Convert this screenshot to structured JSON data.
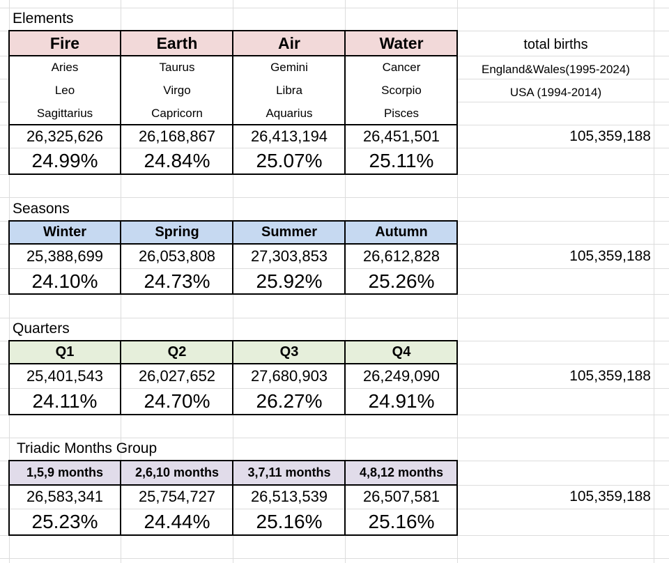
{
  "sheet": {
    "side_info": {
      "title": "total births",
      "line1": "England&Wales(1995-2024)",
      "line2": "USA (1994-2014)"
    },
    "colors": {
      "elements_header": "#f2d9d9",
      "seasons_header": "#c6d9f1",
      "quarters_header": "#e6efdb",
      "triadic_header": "#e1dcea",
      "gridline": "#dcdcdc"
    },
    "sections": [
      {
        "title": "Elements",
        "headers": [
          "Fire",
          "Earth",
          "Air",
          "Water"
        ],
        "signs": [
          [
            "Aries",
            "Leo",
            "Sagittarius"
          ],
          [
            "Taurus",
            "Virgo",
            "Capricorn"
          ],
          [
            "Gemini",
            "Libra",
            "Aquarius"
          ],
          [
            "Cancer",
            "Scorpio",
            "Pisces"
          ]
        ],
        "counts": [
          "26,325,626",
          "26,168,867",
          "26,413,194",
          "26,451,501"
        ],
        "percents": [
          "24.99%",
          "24.84%",
          "25.07%",
          "25.11%"
        ],
        "total": "105,359,188"
      },
      {
        "title": "Seasons",
        "headers": [
          "Winter",
          "Spring",
          "Summer",
          "Autumn"
        ],
        "counts": [
          "25,388,699",
          "26,053,808",
          "27,303,853",
          "26,612,828"
        ],
        "percents": [
          "24.10%",
          "24.73%",
          "25.92%",
          "25.26%"
        ],
        "total": "105,359,188"
      },
      {
        "title": "Quarters",
        "headers": [
          "Q1",
          "Q2",
          "Q3",
          "Q4"
        ],
        "counts": [
          "25,401,543",
          "26,027,652",
          "27,680,903",
          "26,249,090"
        ],
        "percents": [
          "24.11%",
          "24.70%",
          "26.27%",
          "24.91%"
        ],
        "total": "105,359,188"
      },
      {
        "title": "Triadic Months Group",
        "headers": [
          "1,5,9 months",
          "2,6,10 months",
          "3,7,11 months",
          "4,8,12 months"
        ],
        "counts": [
          "26,583,341",
          "25,754,727",
          "26,513,539",
          "26,507,581"
        ],
        "percents": [
          "25.23%",
          "24.44%",
          "25.16%",
          "25.16%"
        ],
        "total": "105,359,188"
      }
    ]
  }
}
